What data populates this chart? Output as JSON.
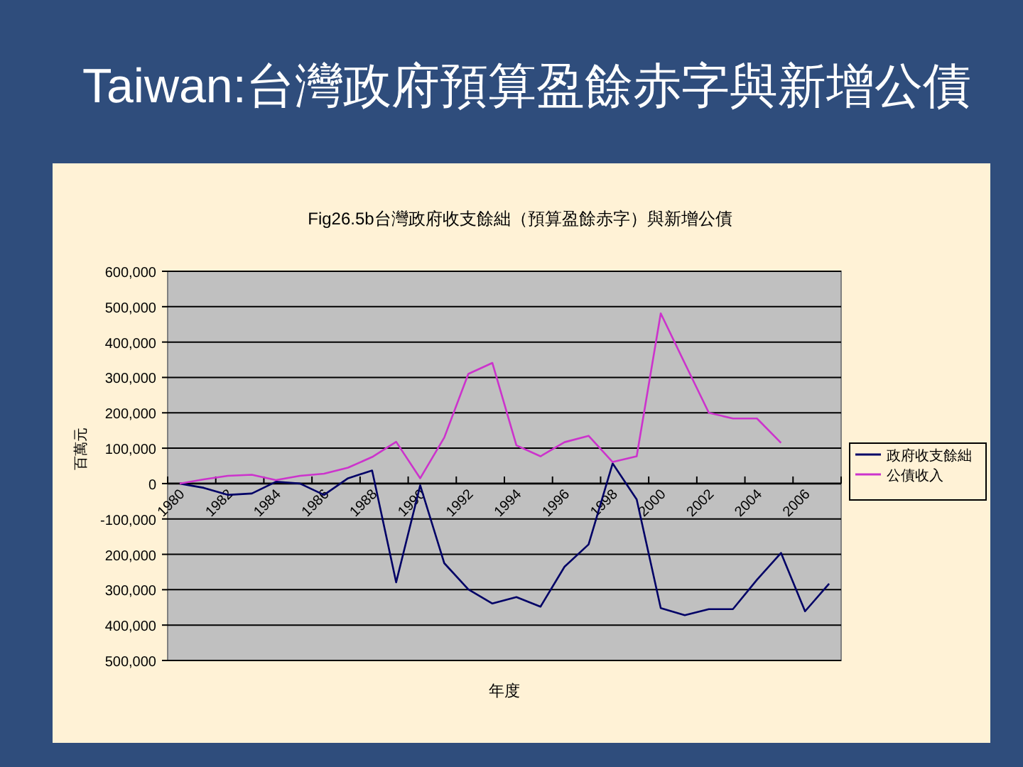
{
  "chart_data": {
    "type": "line",
    "title": "Taiwan:台灣政府預算盈餘赤字與新增公債",
    "subtitle": "Fig26.5b台灣政府收支餘絀（預算盈餘赤字）與新增公債",
    "xlabel": "年度",
    "ylabel": "百萬元",
    "categories": [
      "1980",
      null,
      "1982",
      null,
      "1984",
      null,
      "1986",
      null,
      "1988",
      null,
      "1990",
      null,
      "1992",
      null,
      "1994",
      null,
      "1996",
      null,
      "1998",
      null,
      "2000",
      null,
      "2002",
      null,
      "2004",
      null,
      "2006",
      null
    ],
    "series": [
      {
        "name": "政府收支餘絀",
        "color": "#000066",
        "values": [
          0,
          -12000,
          -32000,
          -28000,
          5000,
          0,
          -32000,
          15000,
          37000,
          -279000,
          -5000,
          -225000,
          -299000,
          -339000,
          -321000,
          -348000,
          -235000,
          -172000,
          57000,
          -45000,
          -352000,
          -372000,
          -355000,
          -355000,
          -272000,
          -196000,
          -361000,
          -283000
        ]
      },
      {
        "name": "公債收入",
        "color": "#cc33cc",
        "values": [
          0,
          12000,
          22000,
          25000,
          10000,
          22000,
          28000,
          45000,
          75000,
          118000,
          15000,
          130000,
          310000,
          341000,
          108000,
          77000,
          117000,
          135000,
          61000,
          77000,
          481000,
          340000,
          200000,
          184000,
          184000,
          115000,
          null,
          null
        ]
      }
    ],
    "ylim": [
      -500000,
      600000
    ],
    "yticks": [
      {
        "value": -500000,
        "label": "500,000"
      },
      {
        "value": -400000,
        "label": "400,000"
      },
      {
        "value": -300000,
        "label": "300,000"
      },
      {
        "value": -200000,
        "label": "200,000"
      },
      {
        "value": -100000,
        "label": "-100,000"
      },
      0,
      {
        "value": 100000,
        "label": "100,000"
      },
      {
        "value": 200000,
        "label": "200,000"
      },
      {
        "value": 300000,
        "label": "300,000"
      },
      {
        "value": 400000,
        "label": "400,000"
      },
      {
        "value": 500000,
        "label": "500,000"
      },
      {
        "value": 600000,
        "label": "600,000"
      }
    ],
    "grid": "y",
    "legend": "right",
    "line_style": "solid",
    "marker": "none"
  }
}
